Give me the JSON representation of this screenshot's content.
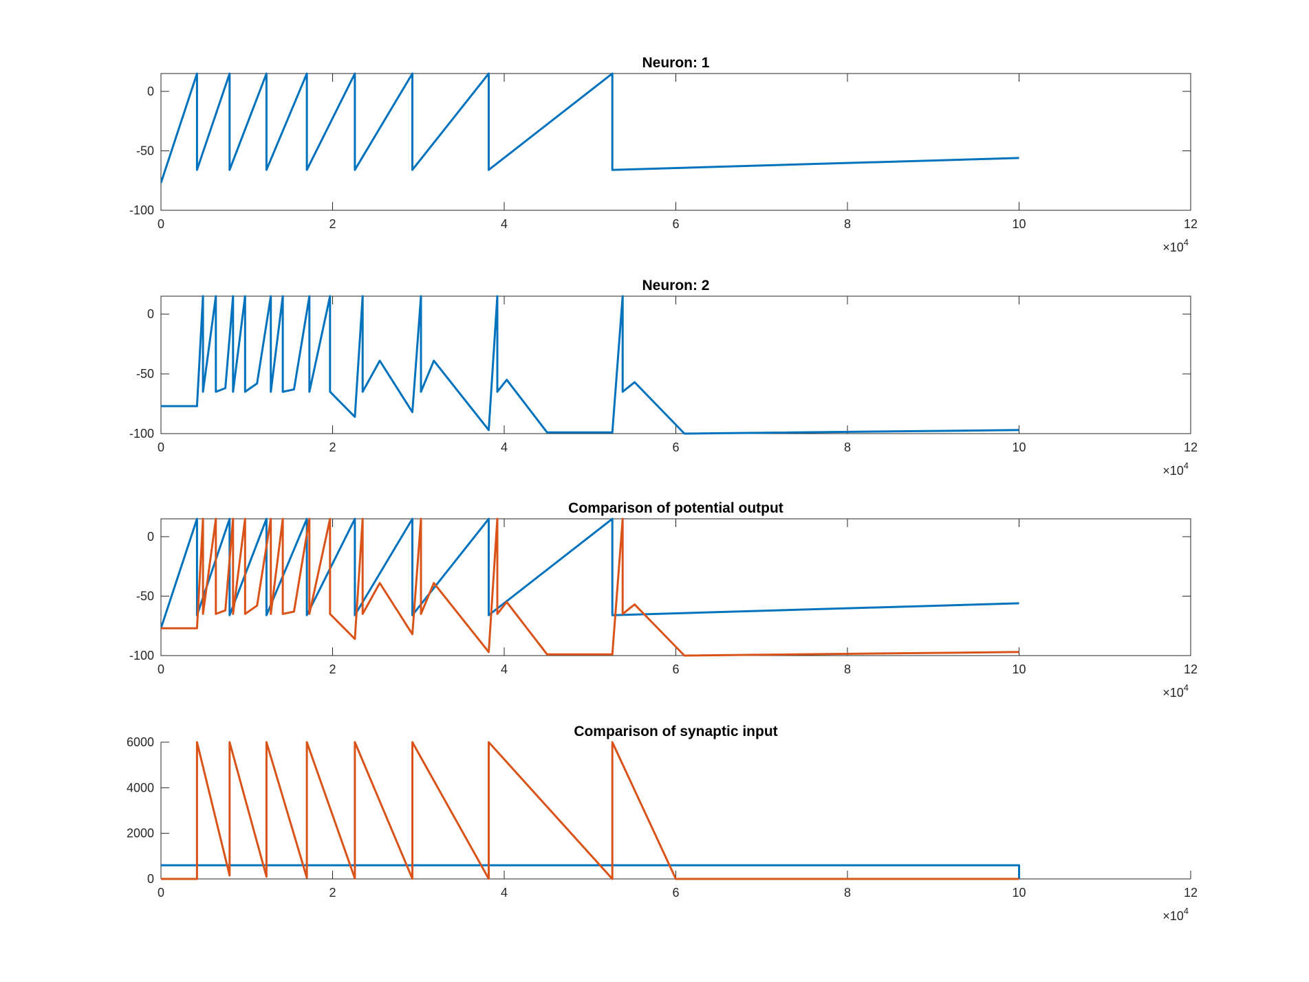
{
  "colors": {
    "series_1": "#0072BD",
    "series_2": "#D95319",
    "axis": "#262626",
    "background": "#FFFFFF"
  },
  "chart_data": [
    {
      "type": "line",
      "title": "Neuron: 1",
      "xlabel": "",
      "ylabel": "",
      "xlim": [
        0,
        120000
      ],
      "ylim": [
        -100,
        15
      ],
      "xticks": [
        0,
        2,
        4,
        6,
        8,
        10,
        12
      ],
      "yticks": [
        -100,
        -50,
        0
      ],
      "x_exponent": "×10^4",
      "grid": false,
      "legend": false,
      "series": [
        {
          "color": "#0072BD",
          "points": [
            [
              0,
              -77
            ],
            [
              4200,
              15
            ],
            [
              4200,
              -66
            ],
            [
              8000,
              15
            ],
            [
              8000,
              -66
            ],
            [
              12300,
              15
            ],
            [
              12300,
              -66
            ],
            [
              17000,
              15
            ],
            [
              17000,
              -66
            ],
            [
              22600,
              15
            ],
            [
              22600,
              -66
            ],
            [
              29300,
              15
            ],
            [
              29300,
              -66
            ],
            [
              38200,
              15
            ],
            [
              38200,
              -66
            ],
            [
              52600,
              15
            ],
            [
              52600,
              -66
            ],
            [
              100000,
              -56
            ]
          ]
        }
      ]
    },
    {
      "type": "line",
      "title": "Neuron: 2",
      "xlabel": "",
      "ylabel": "",
      "xlim": [
        0,
        120000
      ],
      "ylim": [
        -100,
        15
      ],
      "xticks": [
        0,
        2,
        4,
        6,
        8,
        10,
        12
      ],
      "yticks": [
        -100,
        -50,
        0
      ],
      "x_exponent": "×10^4",
      "grid": false,
      "legend": false,
      "series": [
        {
          "color": "#0072BD",
          "points": [
            [
              0,
              -77
            ],
            [
              4200,
              -77
            ],
            [
              4900,
              15
            ],
            [
              4900,
              -65
            ],
            [
              6400,
              15
            ],
            [
              6400,
              -65
            ],
            [
              7500,
              -62
            ],
            [
              8400,
              15
            ],
            [
              8400,
              -65
            ],
            [
              9800,
              15
            ],
            [
              9800,
              -65
            ],
            [
              11200,
              -58
            ],
            [
              12800,
              15
            ],
            [
              12800,
              -65
            ],
            [
              14200,
              15
            ],
            [
              14200,
              -65
            ],
            [
              15500,
              -63
            ],
            [
              17300,
              15
            ],
            [
              17300,
              -65
            ],
            [
              19700,
              15
            ],
            [
              19700,
              -65
            ],
            [
              22600,
              -86
            ],
            [
              23500,
              15
            ],
            [
              23500,
              -65
            ],
            [
              25500,
              -39
            ],
            [
              29300,
              -82
            ],
            [
              30300,
              15
            ],
            [
              30300,
              -65
            ],
            [
              31800,
              -39
            ],
            [
              38200,
              -97
            ],
            [
              39200,
              15
            ],
            [
              39200,
              -65
            ],
            [
              40300,
              -55
            ],
            [
              45000,
              -99
            ],
            [
              52600,
              -99
            ],
            [
              53800,
              15
            ],
            [
              53800,
              -65
            ],
            [
              55200,
              -57
            ],
            [
              61000,
              -100
            ],
            [
              100000,
              -97
            ]
          ]
        }
      ]
    },
    {
      "type": "line",
      "title": "Comparison of potential output",
      "xlabel": "",
      "ylabel": "",
      "xlim": [
        0,
        120000
      ],
      "ylim": [
        -100,
        15
      ],
      "xticks": [
        0,
        2,
        4,
        6,
        8,
        10,
        12
      ],
      "yticks": [
        -100,
        -50,
        0
      ],
      "x_exponent": "×10^4",
      "grid": false,
      "legend": false,
      "series": [
        {
          "color": "#0072BD",
          "points": [
            [
              0,
              -77
            ],
            [
              4200,
              15
            ],
            [
              4200,
              -66
            ],
            [
              8000,
              15
            ],
            [
              8000,
              -66
            ],
            [
              12300,
              15
            ],
            [
              12300,
              -66
            ],
            [
              17000,
              15
            ],
            [
              17000,
              -66
            ],
            [
              22600,
              15
            ],
            [
              22600,
              -66
            ],
            [
              29300,
              15
            ],
            [
              29300,
              -66
            ],
            [
              38200,
              15
            ],
            [
              38200,
              -66
            ],
            [
              52600,
              15
            ],
            [
              52600,
              -66
            ],
            [
              100000,
              -56
            ]
          ]
        },
        {
          "color": "#D95319",
          "points": [
            [
              0,
              -77
            ],
            [
              4200,
              -77
            ],
            [
              4900,
              15
            ],
            [
              4900,
              -65
            ],
            [
              6400,
              15
            ],
            [
              6400,
              -65
            ],
            [
              7500,
              -62
            ],
            [
              8400,
              15
            ],
            [
              8400,
              -65
            ],
            [
              9800,
              15
            ],
            [
              9800,
              -65
            ],
            [
              11200,
              -58
            ],
            [
              12800,
              15
            ],
            [
              12800,
              -65
            ],
            [
              14200,
              15
            ],
            [
              14200,
              -65
            ],
            [
              15500,
              -63
            ],
            [
              17300,
              15
            ],
            [
              17300,
              -65
            ],
            [
              19700,
              15
            ],
            [
              19700,
              -65
            ],
            [
              22600,
              -86
            ],
            [
              23500,
              15
            ],
            [
              23500,
              -65
            ],
            [
              25500,
              -39
            ],
            [
              29300,
              -82
            ],
            [
              30300,
              15
            ],
            [
              30300,
              -65
            ],
            [
              31800,
              -39
            ],
            [
              38200,
              -97
            ],
            [
              39200,
              15
            ],
            [
              39200,
              -65
            ],
            [
              40300,
              -55
            ],
            [
              45000,
              -99
            ],
            [
              52600,
              -99
            ],
            [
              53800,
              15
            ],
            [
              53800,
              -65
            ],
            [
              55200,
              -57
            ],
            [
              61000,
              -100
            ],
            [
              100000,
              -97
            ]
          ]
        }
      ]
    },
    {
      "type": "line",
      "title": "Comparison of synaptic input",
      "xlabel": "",
      "ylabel": "",
      "xlim": [
        0,
        120000
      ],
      "ylim": [
        0,
        6000
      ],
      "xticks": [
        0,
        2,
        4,
        6,
        8,
        10,
        12
      ],
      "yticks": [
        0,
        2000,
        4000,
        6000
      ],
      "x_exponent": "×10^4",
      "grid": false,
      "legend": false,
      "box": false,
      "series": [
        {
          "color": "#0072BD",
          "points": [
            [
              0,
              600
            ],
            [
              100000,
              600
            ],
            [
              100000,
              0
            ]
          ]
        },
        {
          "color": "#D95319",
          "points": [
            [
              0,
              0
            ],
            [
              4200,
              0
            ],
            [
              4200,
              6000
            ],
            [
              8000,
              150
            ],
            [
              8000,
              6000
            ],
            [
              12300,
              100
            ],
            [
              12300,
              6000
            ],
            [
              17000,
              50
            ],
            [
              17000,
              6000
            ],
            [
              22600,
              20
            ],
            [
              22600,
              6000
            ],
            [
              29300,
              10
            ],
            [
              29300,
              6000
            ],
            [
              38200,
              5
            ],
            [
              38200,
              6000
            ],
            [
              52600,
              0
            ],
            [
              52600,
              6000
            ],
            [
              60000,
              0
            ],
            [
              100000,
              0
            ]
          ]
        }
      ]
    }
  ]
}
